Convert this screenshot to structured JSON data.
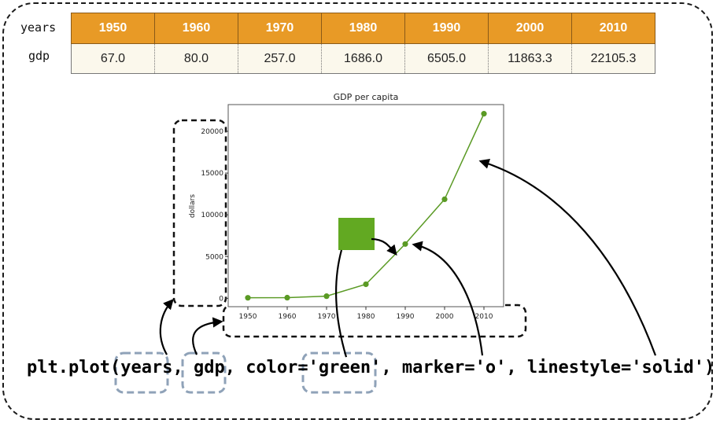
{
  "table": {
    "row1_label": "years",
    "row2_label": "gdp",
    "years": [
      "1950",
      "1960",
      "1970",
      "1980",
      "1990",
      "2000",
      "2010"
    ],
    "gdp": [
      "67.0",
      "80.0",
      "257.0",
      "1686.0",
      "6505.0",
      "11863.3",
      "22105.3"
    ],
    "header_color": "#e89a26"
  },
  "chart_data": {
    "type": "line",
    "title": "GDP per capita",
    "xlabel": "",
    "ylabel": "dollars",
    "x": [
      1950,
      1960,
      1970,
      1980,
      1990,
      2000,
      2010
    ],
    "series": [
      {
        "values": [
          67.0,
          80.0,
          257.0,
          1686.0,
          6505.0,
          11863.3,
          22105.3
        ],
        "color": "#5a9a24",
        "marker": "o",
        "linestyle": "solid"
      }
    ],
    "xticks": [
      "1950",
      "1960",
      "1970",
      "1980",
      "1990",
      "2000",
      "2010"
    ],
    "yticks": [
      "0",
      "5000",
      "10000",
      "15000",
      "20000"
    ],
    "ylim": [
      -1000,
      23200
    ],
    "xlim": [
      1945,
      2015
    ],
    "grid": false
  },
  "code": {
    "prefix": "plt.plot(",
    "arg_years": "years",
    "sep1": ", ",
    "arg_gdp": "gdp",
    "sep2": ", color=",
    "arg_color": "'green'",
    "rest": ", marker='o', linestyle='solid')"
  },
  "swatch_color": "#62a922"
}
